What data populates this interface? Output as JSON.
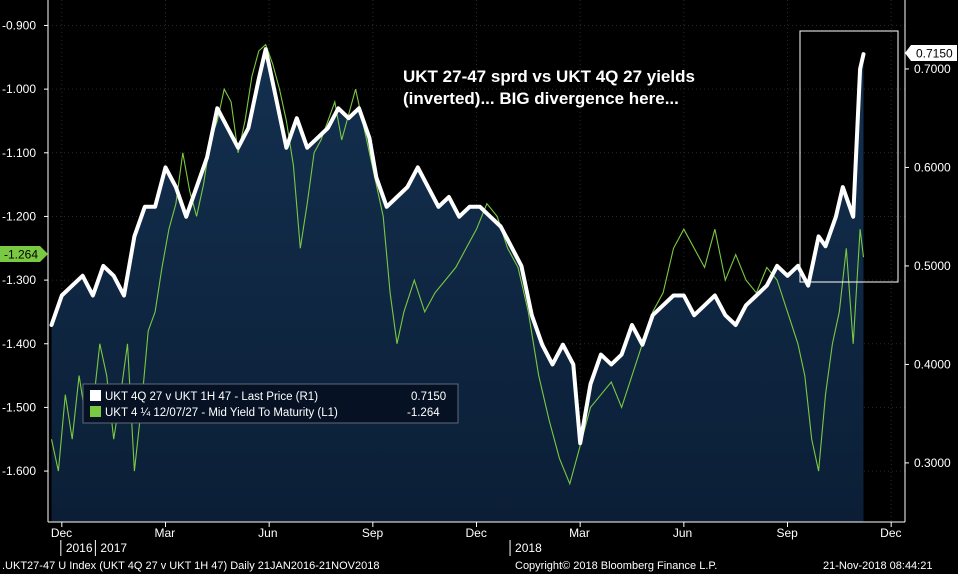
{
  "chart_data": {
    "type": "line",
    "annotation": {
      "line1": "UKT 27-47 sprd vs UKT 4Q 27 yields",
      "line2": "(inverted)... BIG divergence here..."
    },
    "left_axis": {
      "ticks": [
        "-0.900",
        "-1.000",
        "-1.100",
        "-1.200",
        "-1.300",
        "-1.400",
        "-1.500",
        "-1.600"
      ],
      "tick_values": [
        -0.9,
        -1.0,
        -1.1,
        -1.2,
        -1.3,
        -1.4,
        -1.5,
        -1.6
      ],
      "range": [
        -1.68,
        -0.86
      ],
      "last_value_label": "-1.264"
    },
    "right_axis": {
      "ticks": [
        "0.7000",
        "0.6000",
        "0.5000",
        "0.4000",
        "0.3000"
      ],
      "tick_values": [
        0.7,
        0.6,
        0.5,
        0.4,
        0.3
      ],
      "range": [
        0.24,
        0.77
      ],
      "last_value_label": "0.7150"
    },
    "x_axis": {
      "month_labels": [
        "Dec",
        "Mar",
        "Jun",
        "Sep",
        "Dec",
        "Mar",
        "Jun",
        "Sep",
        "Dec"
      ],
      "year_labels": [
        "2016",
        "2017",
        "2018"
      ],
      "month_positions": [
        0.0,
        3.0,
        6.0,
        9.0,
        12.0,
        15.0,
        18.0,
        21.0,
        24.0
      ],
      "year_positions": [
        0.0,
        1.0,
        13.0
      ],
      "range": [
        -0.4,
        24.4
      ]
    },
    "series": [
      {
        "name": "UKT 4Q 27 v UKT 1H 47 - Last Price (R1)",
        "axis": "right",
        "color": "#ffffff",
        "last_value": "0.7150",
        "x": [
          -0.3,
          0.0,
          0.3,
          0.6,
          0.9,
          1.2,
          1.5,
          1.8,
          2.1,
          2.4,
          2.7,
          3.0,
          3.3,
          3.6,
          3.9,
          4.2,
          4.5,
          4.8,
          5.1,
          5.4,
          5.7,
          5.9,
          6.2,
          6.5,
          6.8,
          7.1,
          7.4,
          7.7,
          8.0,
          8.3,
          8.6,
          8.9,
          9.1,
          9.4,
          9.7,
          10.0,
          10.3,
          10.6,
          10.9,
          11.2,
          11.5,
          11.8,
          12.1,
          12.4,
          12.7,
          13.0,
          13.3,
          13.6,
          13.9,
          14.2,
          14.5,
          14.8,
          15.0,
          15.3,
          15.6,
          15.9,
          16.2,
          16.5,
          16.8,
          17.1,
          17.4,
          17.7,
          18.0,
          18.3,
          18.6,
          18.9,
          19.2,
          19.5,
          19.8,
          20.1,
          20.4,
          20.7,
          21.0,
          21.3,
          21.6,
          21.9,
          22.1,
          22.4,
          22.6,
          22.9,
          23.1,
          23.2
        ],
        "values": [
          0.44,
          0.47,
          0.48,
          0.49,
          0.47,
          0.5,
          0.49,
          0.47,
          0.53,
          0.56,
          0.56,
          0.6,
          0.58,
          0.55,
          0.58,
          0.61,
          0.66,
          0.64,
          0.62,
          0.64,
          0.69,
          0.72,
          0.67,
          0.62,
          0.65,
          0.62,
          0.63,
          0.64,
          0.66,
          0.65,
          0.66,
          0.63,
          0.59,
          0.56,
          0.57,
          0.58,
          0.6,
          0.58,
          0.56,
          0.57,
          0.55,
          0.56,
          0.56,
          0.55,
          0.54,
          0.52,
          0.5,
          0.45,
          0.42,
          0.4,
          0.42,
          0.4,
          0.32,
          0.38,
          0.41,
          0.4,
          0.41,
          0.44,
          0.42,
          0.45,
          0.46,
          0.47,
          0.47,
          0.45,
          0.46,
          0.47,
          0.45,
          0.44,
          0.46,
          0.47,
          0.48,
          0.5,
          0.49,
          0.5,
          0.48,
          0.53,
          0.52,
          0.55,
          0.58,
          0.55,
          0.7,
          0.715
        ]
      },
      {
        "name": "UKT 4 ¼ 12/07/27 - Mid Yield To Maturity (L1)",
        "axis": "left",
        "color": "#7ac943",
        "last_value": "-1.264",
        "x": [
          -0.3,
          -0.1,
          0.1,
          0.3,
          0.5,
          0.7,
          0.9,
          1.1,
          1.3,
          1.5,
          1.7,
          1.9,
          2.1,
          2.3,
          2.5,
          2.7,
          2.9,
          3.1,
          3.3,
          3.5,
          3.7,
          3.9,
          4.1,
          4.3,
          4.5,
          4.7,
          4.9,
          5.1,
          5.3,
          5.5,
          5.7,
          5.9,
          6.1,
          6.3,
          6.5,
          6.7,
          6.9,
          7.1,
          7.3,
          7.5,
          7.7,
          7.9,
          8.1,
          8.3,
          8.5,
          8.7,
          8.9,
          9.1,
          9.3,
          9.5,
          9.7,
          9.9,
          10.2,
          10.5,
          10.8,
          11.1,
          11.4,
          11.7,
          12.0,
          12.3,
          12.6,
          12.9,
          13.2,
          13.5,
          13.8,
          14.1,
          14.4,
          14.7,
          15.0,
          15.3,
          15.6,
          15.9,
          16.2,
          16.5,
          16.8,
          17.1,
          17.4,
          17.7,
          18.0,
          18.3,
          18.6,
          18.9,
          19.2,
          19.5,
          19.8,
          20.1,
          20.4,
          20.7,
          21.0,
          21.3,
          21.5,
          21.7,
          21.9,
          22.1,
          22.3,
          22.5,
          22.7,
          22.9,
          23.1,
          23.2
        ],
        "values": [
          -1.55,
          -1.6,
          -1.48,
          -1.55,
          -1.45,
          -1.52,
          -1.5,
          -1.4,
          -1.45,
          -1.55,
          -1.48,
          -1.4,
          -1.6,
          -1.5,
          -1.38,
          -1.35,
          -1.28,
          -1.22,
          -1.18,
          -1.1,
          -1.16,
          -1.2,
          -1.15,
          -1.08,
          -1.05,
          -1.0,
          -1.02,
          -1.1,
          -1.05,
          -0.98,
          -0.94,
          -0.93,
          -0.96,
          -1.0,
          -1.05,
          -1.12,
          -1.25,
          -1.18,
          -1.1,
          -1.08,
          -1.05,
          -1.02,
          -1.08,
          -1.04,
          -1.0,
          -1.05,
          -1.1,
          -1.15,
          -1.2,
          -1.32,
          -1.4,
          -1.35,
          -1.3,
          -1.35,
          -1.32,
          -1.3,
          -1.28,
          -1.25,
          -1.22,
          -1.18,
          -1.2,
          -1.25,
          -1.28,
          -1.35,
          -1.45,
          -1.52,
          -1.58,
          -1.62,
          -1.56,
          -1.5,
          -1.48,
          -1.46,
          -1.5,
          -1.45,
          -1.4,
          -1.35,
          -1.32,
          -1.25,
          -1.22,
          -1.25,
          -1.28,
          -1.22,
          -1.3,
          -1.26,
          -1.3,
          -1.32,
          -1.28,
          -1.3,
          -1.35,
          -1.4,
          -1.45,
          -1.55,
          -1.6,
          -1.48,
          -1.4,
          -1.35,
          -1.25,
          -1.4,
          -1.22,
          -1.264
        ]
      }
    ],
    "legend": {
      "entries": [
        {
          "label": "UKT 4Q 27 v UKT 1H 47 - Last Price (R1)",
          "value": "0.7150",
          "color": "#ffffff"
        },
        {
          "label": "UKT 4 ¼ 12/07/27 - Mid Yield To Maturity (L1)",
          "value": "-1.264",
          "color": "#7ac943"
        }
      ],
      "placement": "bottom-left"
    },
    "footer": {
      "left": ".UKT27-47 U Index (UKT 4Q 27 v UKT 1H 47) Daily 21JAN2016-21NOV2018",
      "center": "Copyright© 2018 Bloomberg Finance L.P.",
      "right": "21-Nov-2018 08:44:21"
    },
    "grid": true,
    "colors": {
      "background": "#000000",
      "area_top": "#13304f",
      "area_bottom": "#0b1e36",
      "white_line": "#ffffff",
      "green_line": "#7ac943",
      "grid": "#2a2a2a",
      "highlight_box": "#ffffff"
    }
  }
}
